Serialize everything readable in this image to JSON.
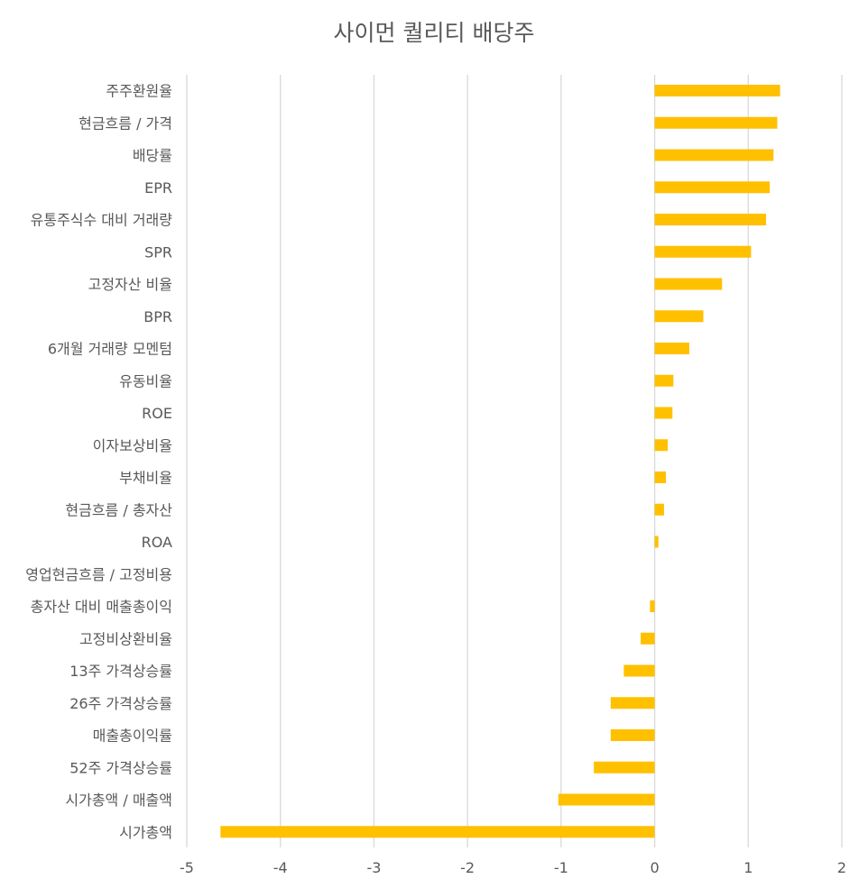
{
  "chart_data": {
    "type": "bar",
    "orientation": "horizontal",
    "title": "사이먼 퀄리티 배당주",
    "xlabel": "",
    "ylabel": "",
    "xlim": [
      -5,
      2
    ],
    "xticks": [
      "-5",
      "-4",
      "-3",
      "-2",
      "-1",
      "0",
      "1",
      "2"
    ],
    "grid": true,
    "bar_color": "#FFC000",
    "categories": [
      "주주환원율",
      "현금흐름 / 가격",
      "배당률",
      "EPR",
      "유통주식수 대비 거래량",
      "SPR",
      "고정자산 비율",
      "BPR",
      "6개월 거래량 모멘텀",
      "유동비율",
      "ROE",
      "이자보상비율",
      "부채비율",
      "현금흐름 / 총자산",
      "ROA",
      "영업현금흐름 / 고정비용",
      "총자산 대비 매출총이익",
      "고정비상환비율",
      "13주 가격상승률",
      "26주 가격상승률",
      "매출총이익률",
      "52주 가격상승률",
      "시가총액 / 매출액",
      "시가총액"
    ],
    "values": [
      1.34,
      1.31,
      1.27,
      1.23,
      1.19,
      1.03,
      0.72,
      0.52,
      0.37,
      0.2,
      0.19,
      0.14,
      0.12,
      0.1,
      0.04,
      0.0,
      -0.05,
      -0.15,
      -0.33,
      -0.47,
      -0.47,
      -0.65,
      -1.03,
      -4.64
    ]
  }
}
